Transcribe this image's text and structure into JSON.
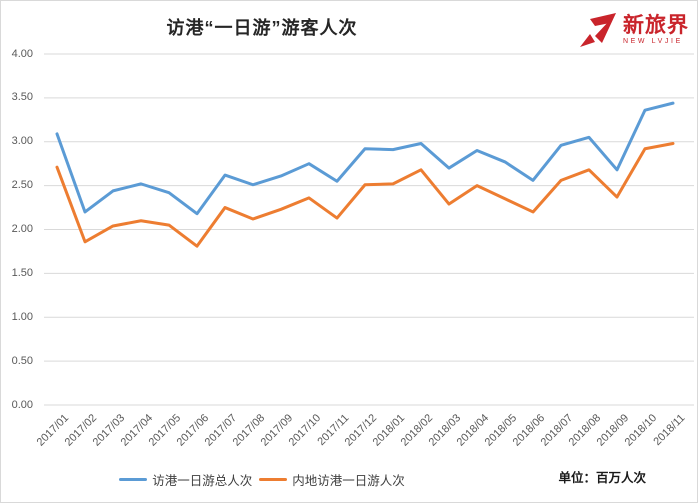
{
  "title": "访港“一日游”游客人次",
  "logo": {
    "name": "新旅界",
    "subtitle": "NEW LVJIE",
    "color": "#c9242b"
  },
  "unit_label": "单位：百万人次",
  "colors": {
    "series_total": "#5b9bd5",
    "series_mainland": "#ed7d31",
    "gridline": "#d9d9d9",
    "axis_text": "#595959"
  },
  "chart_data": {
    "type": "line",
    "title": "访港“一日游”游客人次",
    "categories": [
      "2017/01",
      "2017/02",
      "2017/03",
      "2017/04",
      "2017/05",
      "2017/06",
      "2017/07",
      "2017/08",
      "2017/09",
      "2017/10",
      "2017/11",
      "2017/12",
      "2018/01",
      "2018/02",
      "2018/03",
      "2018/04",
      "2018/05",
      "2018/06",
      "2018/07",
      "2018/08",
      "2018/09",
      "2018/10",
      "2018/11"
    ],
    "series": [
      {
        "name": "访港一日游总人次",
        "color": "#5b9bd5",
        "values": [
          3.09,
          2.2,
          2.44,
          2.52,
          2.42,
          2.18,
          2.62,
          2.51,
          2.61,
          2.75,
          2.55,
          2.92,
          2.91,
          2.98,
          2.7,
          2.9,
          2.77,
          2.56,
          2.96,
          3.05,
          2.68,
          3.36,
          3.44
        ]
      },
      {
        "name": "内地访港一日游人次",
        "color": "#ed7d31",
        "values": [
          2.71,
          1.86,
          2.04,
          2.1,
          2.05,
          1.81,
          2.25,
          2.12,
          2.23,
          2.36,
          2.13,
          2.51,
          2.52,
          2.68,
          2.29,
          2.5,
          2.35,
          2.2,
          2.56,
          2.68,
          2.37,
          2.92,
          2.98
        ]
      }
    ],
    "ylim": [
      0.0,
      4.0
    ],
    "ytick_step": 0.5,
    "ytick_labels": [
      "4.00",
      "3.50",
      "3.00",
      "2.50",
      "2.00",
      "1.50",
      "1.00",
      "0.50",
      "0.00"
    ],
    "ylabel": "",
    "xlabel": "",
    "grid": "horizontal",
    "legend_position": "bottom",
    "unit": "百万人次"
  }
}
